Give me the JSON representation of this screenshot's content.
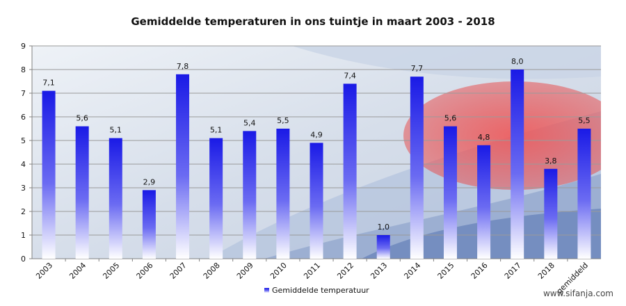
{
  "chart_data": {
    "type": "bar",
    "title": "Gemiddelde temperaturen in ons tuintje in maart 2003 - 2018",
    "categories": [
      "2003",
      "2004",
      "2005",
      "2006",
      "2007",
      "2008",
      "2009",
      "2010",
      "2011",
      "2012",
      "2013",
      "2014",
      "2015",
      "2016",
      "2017",
      "2018",
      "gemiddeld"
    ],
    "series": [
      {
        "name": "Gemiddelde temperatuur",
        "values": [
          7.1,
          5.6,
          5.1,
          2.9,
          7.8,
          5.1,
          5.4,
          5.5,
          4.9,
          7.4,
          1.0,
          7.7,
          5.6,
          4.8,
          8.0,
          3.8,
          5.5
        ],
        "labels": [
          "7,1",
          "5,6",
          "5,1",
          "2,9",
          "7,8",
          "5,1",
          "5,4",
          "5,5",
          "4,9",
          "7,4",
          "1,0",
          "7,7",
          "5,6",
          "4,8",
          "8,0",
          "3,8",
          "5,5"
        ]
      }
    ],
    "ylim": [
      0,
      9
    ],
    "yticks": [
      "0",
      "1",
      "2",
      "3",
      "4",
      "5",
      "6",
      "7",
      "8",
      "9"
    ],
    "xlabel": "",
    "ylabel": "",
    "grid": true,
    "legend": "bottom-center",
    "colors": {
      "bar_top": "#1a1ae6",
      "bar_bottom": "#ffffff",
      "grid": "#9a9a9a",
      "axis": "#808080",
      "bg_sky": "#d8e2ee",
      "bg_stripe": "#b9c8e0",
      "bg_red": "#e23a3a"
    }
  },
  "watermark": "www.sifanja.com"
}
